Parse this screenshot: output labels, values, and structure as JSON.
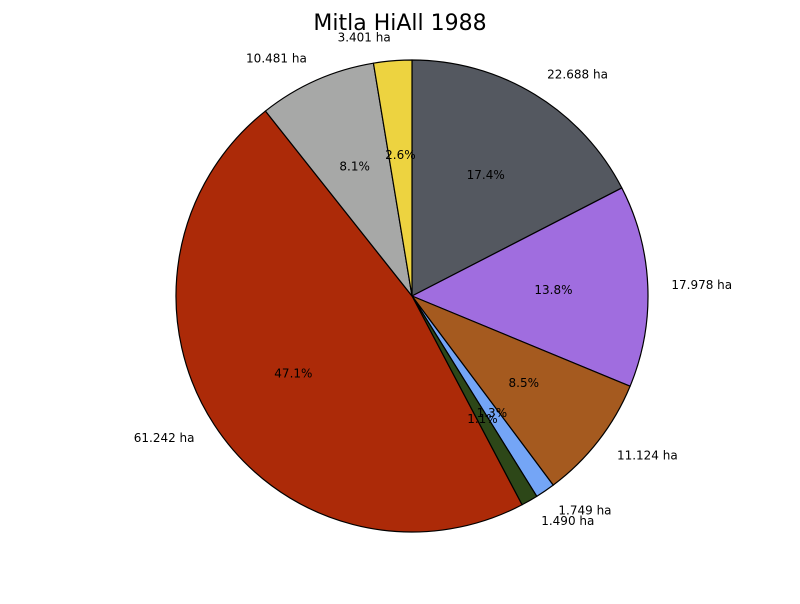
{
  "chart_data": {
    "type": "pie",
    "title": "Mitla HiAll 1988",
    "start_angle_deg": 90,
    "direction": "clockwise",
    "slices": [
      {
        "value": 22.688,
        "label": "22.688 ha",
        "pct_label": "17.4%",
        "color": "#545860"
      },
      {
        "value": 17.978,
        "label": "17.978 ha",
        "pct_label": "13.8%",
        "color": "#a06ddf"
      },
      {
        "value": 11.124,
        "label": "11.124 ha",
        "pct_label": "8.5%",
        "color": "#a55a1f"
      },
      {
        "value": 1.749,
        "label": "1.749 ha",
        "pct_label": "1.3%",
        "color": "#74a5f6"
      },
      {
        "value": 1.49,
        "label": "1.490 ha",
        "pct_label": "1.1%",
        "color": "#2d4718"
      },
      {
        "value": 61.242,
        "label": "61.242 ha",
        "pct_label": "47.1%",
        "color": "#ac2a08"
      },
      {
        "value": 10.481,
        "label": "10.481 ha",
        "pct_label": "8.1%",
        "color": "#a7a8a7"
      },
      {
        "value": 3.401,
        "label": "3.401 ha",
        "pct_label": "2.6%",
        "color": "#edd340"
      }
    ]
  }
}
